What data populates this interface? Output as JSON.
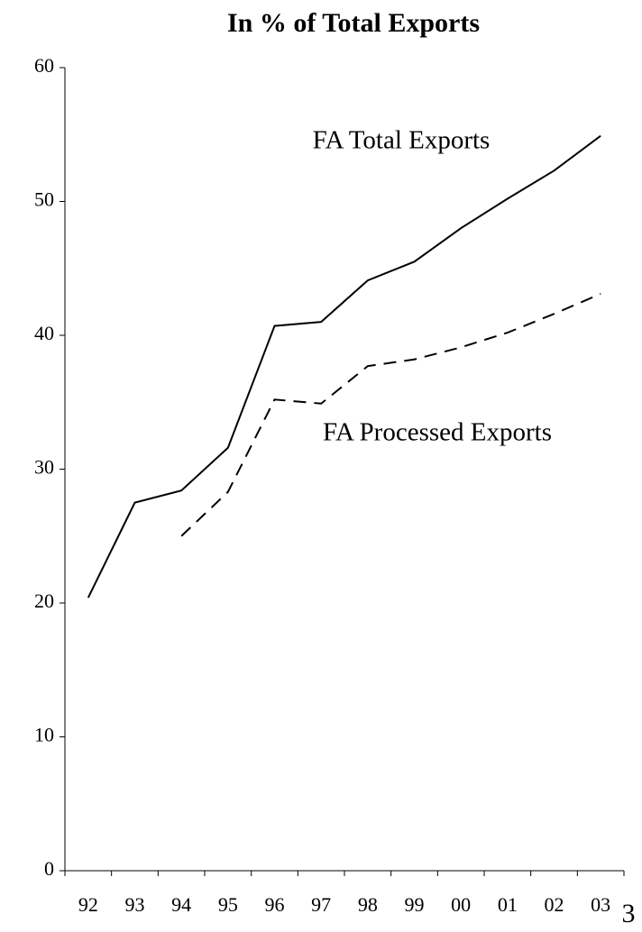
{
  "chart_data": {
    "type": "line",
    "title": "In % of Total Exports",
    "categories": [
      "92",
      "93",
      "94",
      "95",
      "96",
      "97",
      "98",
      "99",
      "00",
      "01",
      "02",
      "03"
    ],
    "series": [
      {
        "name": "FA Total Exports",
        "color": "#000000",
        "dash": "solid",
        "values": [
          20.4,
          27.5,
          28.4,
          31.6,
          40.7,
          41.0,
          44.1,
          45.5,
          48.0,
          50.2,
          52.3,
          54.9
        ]
      },
      {
        "name": "FA Processed Exports",
        "color": "#000000",
        "dash": "dashed",
        "values": [
          null,
          null,
          25.0,
          28.3,
          35.2,
          34.9,
          37.7,
          38.2,
          39.1,
          40.2,
          41.6,
          43.1
        ]
      }
    ],
    "ylim": [
      0,
      60
    ],
    "yticks": [
      0,
      10,
      20,
      30,
      40,
      50,
      60
    ],
    "grid": false
  },
  "page_number": "3"
}
